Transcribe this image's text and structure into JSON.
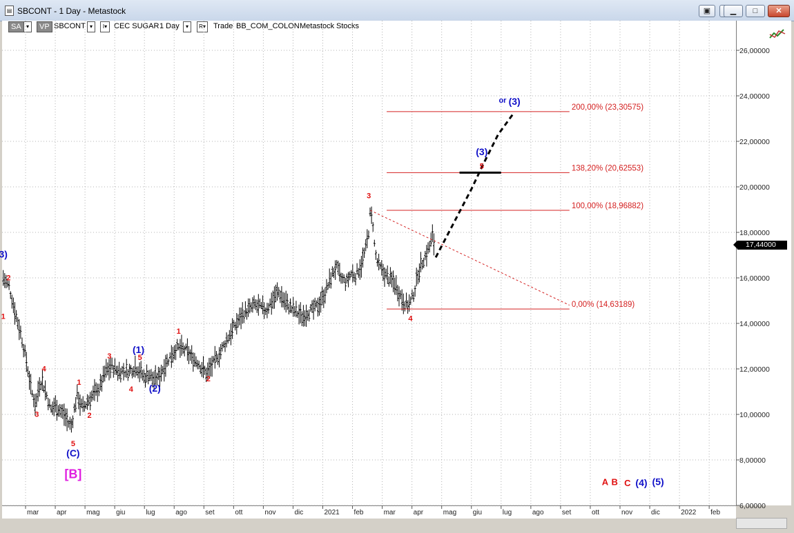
{
  "window": {
    "title": "SBCONT - 1 Day - Metastock",
    "icon": "document-icon",
    "buttons": [
      "restore-icon",
      "minimize-icon",
      "maximize-icon",
      "close-icon"
    ]
  },
  "toolbar": {
    "sa": "SA",
    "vp": "VP",
    "symbol": "SBCONT",
    "dropdown_glyph": "▾",
    "r_glyph": "I▾",
    "name": "CEC SUGAR",
    "period": "1 Day",
    "rr_glyph": "R▾",
    "trade": "Trade",
    "template": "BB_COM_COLON",
    "app": "Metastock",
    "type": "Stocks"
  },
  "colors": {
    "price": "#000000",
    "fib_line": "#d42020",
    "wave_red": "#e01010",
    "wave_blue": "#1010c8",
    "wave_magenta": "#e020e0",
    "projection": "#000000"
  },
  "chart_data": {
    "type": "ohlc",
    "title": "",
    "ylim": [
      6,
      27
    ],
    "price_label": "17,44000",
    "y_ticks": [
      "6,00000",
      "8,00000",
      "10,00000",
      "12,00000",
      "14,00000",
      "16,00000",
      "18,00000",
      "20,00000",
      "22,00000",
      "24,00000",
      "26,00000"
    ],
    "y_tick_values": [
      6,
      8,
      10,
      12,
      14,
      16,
      18,
      20,
      22,
      24,
      26
    ],
    "x_ticks": [
      "mar",
      "apr",
      "mag",
      "giu",
      "lug",
      "ago",
      "set",
      "ott",
      "nov",
      "dic",
      "2021",
      "feb",
      "mar",
      "apr",
      "mag",
      "giu",
      "lug",
      "ago",
      "set",
      "ott",
      "nov",
      "dic",
      "2022",
      "feb"
    ],
    "x_tick_months": [
      0,
      1,
      2,
      3,
      4,
      5,
      6,
      7,
      8,
      9,
      10,
      11,
      12,
      13,
      14,
      15,
      16,
      17,
      18,
      19,
      20,
      21,
      22,
      23
    ],
    "x_range": [
      -0.75,
      24.4
    ],
    "price_path": [
      [
        -0.75,
        16.0
      ],
      [
        -0.55,
        15.6
      ],
      [
        -0.35,
        14.5
      ],
      [
        -0.15,
        13.5
      ],
      [
        0.05,
        12.2
      ],
      [
        0.2,
        11.0
      ],
      [
        0.35,
        10.4
      ],
      [
        0.45,
        11.3
      ],
      [
        0.55,
        11.5
      ],
      [
        0.7,
        10.9
      ],
      [
        0.85,
        10.2
      ],
      [
        1.0,
        10.4
      ],
      [
        1.15,
        10.2
      ],
      [
        1.3,
        10.0
      ],
      [
        1.45,
        9.6
      ],
      [
        1.55,
        9.5
      ],
      [
        1.65,
        10.3
      ],
      [
        1.75,
        10.9
      ],
      [
        1.85,
        10.4
      ],
      [
        1.95,
        10.3
      ],
      [
        2.1,
        10.6
      ],
      [
        2.3,
        10.9
      ],
      [
        2.5,
        11.2
      ],
      [
        2.7,
        11.9
      ],
      [
        2.9,
        12.1
      ],
      [
        3.1,
        11.9
      ],
      [
        3.3,
        11.9
      ],
      [
        3.5,
        11.9
      ],
      [
        3.7,
        12.1
      ],
      [
        3.85,
        11.9
      ],
      [
        4.0,
        11.6
      ],
      [
        4.15,
        11.8
      ],
      [
        4.3,
        11.5
      ],
      [
        4.5,
        11.7
      ],
      [
        4.7,
        12.2
      ],
      [
        4.9,
        12.6
      ],
      [
        5.05,
        12.9
      ],
      [
        5.2,
        12.9
      ],
      [
        5.4,
        12.8
      ],
      [
        5.6,
        12.5
      ],
      [
        5.8,
        12.3
      ],
      [
        5.95,
        12.0
      ],
      [
        6.1,
        11.8
      ],
      [
        6.3,
        12.2
      ],
      [
        6.5,
        12.6
      ],
      [
        6.7,
        13.1
      ],
      [
        6.9,
        13.6
      ],
      [
        7.1,
        14.0
      ],
      [
        7.3,
        14.4
      ],
      [
        7.5,
        14.6
      ],
      [
        7.7,
        14.8
      ],
      [
        7.9,
        14.7
      ],
      [
        8.1,
        14.6
      ],
      [
        8.3,
        15.0
      ],
      [
        8.5,
        15.4
      ],
      [
        8.7,
        15.0
      ],
      [
        8.9,
        14.7
      ],
      [
        9.1,
        14.5
      ],
      [
        9.3,
        14.3
      ],
      [
        9.5,
        14.5
      ],
      [
        9.7,
        14.6
      ],
      [
        9.9,
        14.9
      ],
      [
        10.1,
        15.4
      ],
      [
        10.3,
        16.1
      ],
      [
        10.45,
        16.5
      ],
      [
        10.6,
        16.0
      ],
      [
        10.8,
        15.8
      ],
      [
        10.95,
        16.2
      ],
      [
        11.1,
        16.1
      ],
      [
        11.3,
        16.6
      ],
      [
        11.45,
        17.3
      ],
      [
        11.55,
        18.1
      ],
      [
        11.6,
        18.9
      ],
      [
        11.7,
        18.3
      ],
      [
        11.75,
        17.2
      ],
      [
        11.85,
        16.6
      ],
      [
        12.0,
        16.3
      ],
      [
        12.2,
        16.0
      ],
      [
        12.4,
        15.8
      ],
      [
        12.55,
        15.4
      ],
      [
        12.7,
        15.0
      ],
      [
        12.85,
        14.8
      ],
      [
        12.95,
        14.9
      ],
      [
        13.1,
        15.5
      ],
      [
        13.2,
        16.2
      ],
      [
        13.35,
        16.7
      ],
      [
        13.5,
        17.1
      ],
      [
        13.6,
        17.4
      ],
      [
        13.7,
        17.9
      ],
      [
        13.75,
        17.4
      ]
    ],
    "fib_levels": [
      {
        "label": "200,00% (23,30575)",
        "value": 23.30575,
        "x_from": 12.15,
        "x_to": 18.3
      },
      {
        "label": "138,20% (20,62553)",
        "value": 20.62553,
        "x_from": 12.15,
        "x_to": 18.3
      },
      {
        "label": "100,00% (18,96882)",
        "value": 18.96882,
        "x_from": 12.15,
        "x_to": 18.3
      },
      {
        "label": "0,00% (14,63189)",
        "value": 14.63189,
        "x_from": 12.15,
        "x_to": 18.3
      }
    ],
    "trend_line": [
      [
        11.6,
        18.96882
      ],
      [
        18.3,
        14.8
      ]
    ],
    "projection_path": [
      [
        13.8,
        16.9
      ],
      [
        14.4,
        18.4
      ],
      [
        15.0,
        19.9
      ],
      [
        15.4,
        21.0
      ],
      [
        15.9,
        22.3
      ],
      [
        16.4,
        23.2
      ]
    ],
    "target_bar": {
      "value": 20.62553,
      "x_from": 14.6,
      "x_to": 16.0
    },
    "wave_labels": [
      {
        "text": "3)",
        "x": -0.75,
        "y": 16.9,
        "color": "blue",
        "bold": true
      },
      {
        "text": "2",
        "x": -0.57,
        "y": 15.9,
        "color": "red"
      },
      {
        "text": "1",
        "x": -0.75,
        "y": 14.2,
        "color": "red"
      },
      {
        "text": "4",
        "x": 0.62,
        "y": 11.9,
        "color": "red"
      },
      {
        "text": "3",
        "x": 0.38,
        "y": 9.9,
        "color": "red"
      },
      {
        "text": "5",
        "x": 1.6,
        "y": 8.6,
        "color": "red"
      },
      {
        "text": "(C)",
        "x": 1.6,
        "y": 8.15,
        "color": "blue",
        "bold": true
      },
      {
        "text": "[B]",
        "x": 1.6,
        "y": 7.2,
        "color": "magenta",
        "bold": true
      },
      {
        "text": "1",
        "x": 1.8,
        "y": 11.3,
        "color": "red"
      },
      {
        "text": "2",
        "x": 2.15,
        "y": 9.85,
        "color": "red"
      },
      {
        "text": "3",
        "x": 2.82,
        "y": 12.45,
        "color": "red"
      },
      {
        "text": "4",
        "x": 3.55,
        "y": 11.0,
        "color": "red"
      },
      {
        "text": "(1)",
        "x": 3.8,
        "y": 12.7,
        "color": "blue",
        "bold": true
      },
      {
        "text": "5",
        "x": 3.85,
        "y": 12.4,
        "color": "red"
      },
      {
        "text": "(2)",
        "x": 4.35,
        "y": 11.0,
        "color": "blue",
        "bold": true
      },
      {
        "text": "1",
        "x": 5.15,
        "y": 13.55,
        "color": "red"
      },
      {
        "text": "2",
        "x": 6.15,
        "y": 11.45,
        "color": "red"
      },
      {
        "text": "3",
        "x": 11.55,
        "y": 19.5,
        "color": "red"
      },
      {
        "text": "4",
        "x": 12.95,
        "y": 14.1,
        "color": "red"
      },
      {
        "text": "5",
        "x": 15.35,
        "y": 20.8,
        "color": "red"
      },
      {
        "text": "(3)",
        "x": 15.35,
        "y": 21.4,
        "color": "blue",
        "bold": true
      },
      {
        "text": "or",
        "x": 16.05,
        "y": 23.7,
        "color": "blue"
      },
      {
        "text": "(3)",
        "x": 16.45,
        "y": 23.6,
        "color": "blue",
        "bold": true
      },
      {
        "text": "A",
        "x": 19.5,
        "y": 6.9,
        "color": "red",
        "big": true
      },
      {
        "text": "B",
        "x": 19.82,
        "y": 6.9,
        "color": "red",
        "big": true
      },
      {
        "text": "C",
        "x": 20.25,
        "y": 6.85,
        "color": "red",
        "big": true
      },
      {
        "text": "(4)",
        "x": 20.72,
        "y": 6.85,
        "color": "blue",
        "bold": true
      },
      {
        "text": "(5)",
        "x": 21.28,
        "y": 6.9,
        "color": "blue",
        "bold": true
      }
    ]
  }
}
